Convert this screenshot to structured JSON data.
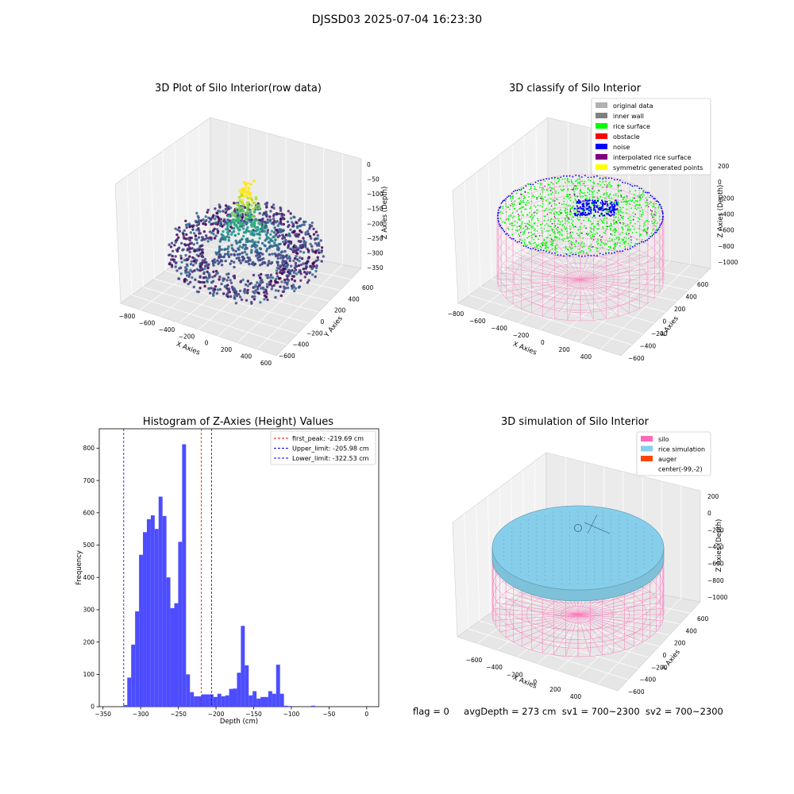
{
  "figure_title": "DJSSD03 2025-07-04 16:23:30",
  "status_line": {
    "flag": "flag = 0",
    "avg_depth": "avgDepth = 273 cm",
    "sv1": "sv1 = 700~2300",
    "sv2": "sv2 = 700~2300"
  },
  "colors": {
    "histogram_bar": "#4d4dff",
    "first_peak": "#ff0000",
    "limits": "#0000ff",
    "silo": "#ff69b4",
    "rice_simulation": "#87ceeb",
    "auger": "#ff4500",
    "rice_surface": "#00ff00",
    "noise": "#0000ff"
  },
  "chart_data": [
    {
      "type": "scatter",
      "title": "3D Plot of Silo Interior(row data)",
      "xlabel": "X Axies",
      "ylabel": "Y Axies",
      "zlabel": "Z Axies (Depth)",
      "x_ticks": [
        "−800",
        "−600",
        "−400",
        "−200",
        "0",
        "200",
        "400",
        "600"
      ],
      "y_ticks": [
        "−600",
        "−400",
        "−200",
        "0",
        "200",
        "400",
        "600"
      ],
      "z_ticks": [
        "0",
        "−50",
        "−100",
        "−150",
        "−200",
        "−250",
        "−300",
        "−350"
      ],
      "colormap": "viridis"
    },
    {
      "type": "scatter",
      "title": "3D classify of Silo Interior",
      "xlabel": "X Axies",
      "ylabel": "Y Axies",
      "zlabel": "Z Axies (Depth)",
      "x_ticks": [
        "−800",
        "−600",
        "−400",
        "−200",
        "0",
        "200",
        "400"
      ],
      "y_ticks": [
        "−600",
        "−400",
        "−200",
        "0",
        "200",
        "400",
        "600"
      ],
      "z_ticks": [
        "200",
        "0",
        "−200",
        "−400",
        "−600",
        "−800",
        "−1000"
      ],
      "legend_position": "top-right",
      "legend": [
        {
          "label": "original data",
          "color": "#b0b0b0"
        },
        {
          "label": "inner wall",
          "color": "#808080"
        },
        {
          "label": "rice surface",
          "color": "#00ff00"
        },
        {
          "label": "obstacle",
          "color": "#ff0000"
        },
        {
          "label": "noise",
          "color": "#0000ff"
        },
        {
          "label": "interpolated rice surface",
          "color": "#800080"
        },
        {
          "label": "symmetric generated points",
          "color": "#ffff00"
        }
      ]
    },
    {
      "type": "bar",
      "title": "Histogram of Z-Axies (Height) Values",
      "xlabel": "Depth (cm)",
      "ylabel": "Frequency",
      "xlim": [
        -355,
        16
      ],
      "ylim": [
        0,
        860
      ],
      "x_ticks": [
        -350,
        -300,
        -250,
        -200,
        -150,
        -100,
        -50,
        0
      ],
      "x_tick_labels": [
        "−350",
        "−300",
        "−250",
        "−200",
        "−150",
        "−100",
        "−50",
        "0"
      ],
      "y_ticks": [
        0,
        100,
        200,
        300,
        400,
        500,
        600,
        700,
        800
      ],
      "bin_start": -323,
      "bin_width": 5.2,
      "values": [
        5,
        90,
        192,
        295,
        470,
        540,
        580,
        592,
        550,
        650,
        590,
        400,
        305,
        320,
        510,
        812,
        100,
        45,
        32,
        32,
        38,
        38,
        38,
        30,
        40,
        32,
        35,
        55,
        56,
        105,
        250,
        128,
        35,
        48,
        25,
        30,
        30,
        48,
        40,
        130,
        40,
        3,
        2,
        0,
        0,
        0,
        0,
        0,
        3
      ],
      "vlines": [
        {
          "label": "first_peak: -219.69 cm",
          "x": -219.69,
          "color": "#ff0000",
          "style": "dashed"
        },
        {
          "label": "Upper_limit: -205.98 cm",
          "x": -205.98,
          "color": "#0000ff",
          "style": "dashed"
        },
        {
          "label": "Lower_limit: -322.53 cm",
          "x": -322.53,
          "color": "#0000ff",
          "style": "dashed"
        }
      ],
      "legend_position": "top-right"
    },
    {
      "type": "scatter",
      "title": "3D simulation of Silo Interior",
      "xlabel": "X Axies",
      "ylabel": "Y Axies",
      "zlabel": "Z Axies (Depth)",
      "x_ticks": [
        "−600",
        "−400",
        "−200",
        "0",
        "200",
        "400"
      ],
      "y_ticks": [
        "−600",
        "−400",
        "−200",
        "0",
        "200",
        "400",
        "600"
      ],
      "z_ticks": [
        "200",
        "0",
        "−200",
        "−400",
        "−600",
        "−800",
        "−1000"
      ],
      "legend_position": "top-right",
      "legend": [
        {
          "label": "silo",
          "color": "#ff69b4"
        },
        {
          "label": "rice simulation",
          "color": "#87ceeb"
        },
        {
          "label": "auger",
          "color": "#ff4500"
        },
        {
          "label": "center(-99,-2)",
          "color": ""
        }
      ]
    }
  ]
}
